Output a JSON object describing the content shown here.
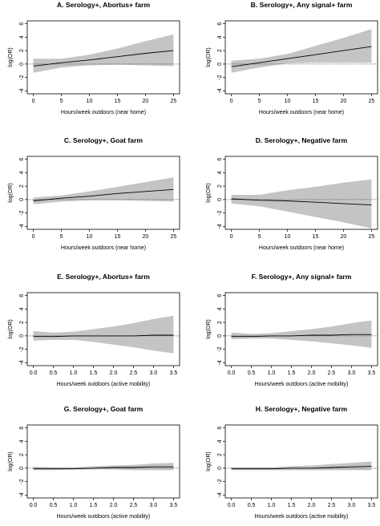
{
  "chart_data": [
    {
      "type": "line",
      "title": "A. Serology+, Abortus+ farm",
      "xlabel": "Hours/week outdoors (near home)",
      "ylabel": "log(OR)",
      "xlim": [
        0,
        25
      ],
      "ylim": [
        -4,
        6
      ],
      "xticks": [
        "0",
        "5",
        "10",
        "15",
        "20",
        "25"
      ],
      "yticks": [
        "-4",
        "-2",
        "0",
        "2",
        "4",
        "6"
      ],
      "reference_line": 0,
      "x": [
        0,
        5,
        10,
        15,
        20,
        25
      ],
      "series": [
        {
          "values": [
            -0.3,
            0.2,
            0.6,
            1.1,
            1.6,
            2.0
          ],
          "ci_lower": [
            -1.3,
            -0.5,
            -0.2,
            -0.1,
            -0.2,
            -0.3
          ],
          "ci_upper": [
            0.8,
            0.8,
            1.4,
            2.3,
            3.4,
            4.4
          ]
        }
      ]
    },
    {
      "type": "line",
      "title": "B. Serology+, Any signal+ farm",
      "xlabel": "Hours/week outdoors (near home)",
      "ylabel": "log(OR)",
      "xlim": [
        0,
        25
      ],
      "ylim": [
        -4,
        6
      ],
      "xticks": [
        "0",
        "5",
        "10",
        "15",
        "20",
        "25"
      ],
      "yticks": [
        "-4",
        "-2",
        "0",
        "2",
        "4",
        "6"
      ],
      "reference_line": 0,
      "x": [
        0,
        5,
        10,
        15,
        20,
        25
      ],
      "series": [
        {
          "values": [
            -0.4,
            0.2,
            0.8,
            1.4,
            2.0,
            2.6
          ],
          "ci_lower": [
            -1.3,
            -0.5,
            0.1,
            0.2,
            0.2,
            0.2
          ],
          "ci_upper": [
            0.5,
            0.8,
            1.5,
            2.7,
            3.9,
            5.2
          ]
        }
      ]
    },
    {
      "type": "line",
      "title": "C. Serology+, Goat farm",
      "xlabel": "Hours/week outdoors (near home)",
      "ylabel": "log(OR)",
      "xlim": [
        0,
        25
      ],
      "ylim": [
        -4,
        6
      ],
      "xticks": [
        "0",
        "5",
        "10",
        "15",
        "20",
        "25"
      ],
      "yticks": [
        "-4",
        "-2",
        "0",
        "2",
        "4",
        "6"
      ],
      "reference_line": 0,
      "x": [
        0,
        5,
        10,
        15,
        20,
        25
      ],
      "series": [
        {
          "values": [
            -0.2,
            0.2,
            0.5,
            0.9,
            1.2,
            1.5
          ],
          "ci_lower": [
            -0.7,
            -0.3,
            -0.1,
            -0.1,
            -0.2,
            -0.3
          ],
          "ci_upper": [
            0.3,
            0.6,
            1.2,
            1.9,
            2.6,
            3.3
          ]
        }
      ]
    },
    {
      "type": "line",
      "title": "D. Serology+, Negative farm",
      "xlabel": "Hours/week outdoors (near home)",
      "ylabel": "log(OR)",
      "xlim": [
        0,
        25
      ],
      "ylim": [
        -4,
        6
      ],
      "xticks": [
        "0",
        "5",
        "10",
        "15",
        "20",
        "25"
      ],
      "yticks": [
        "-4",
        "-2",
        "0",
        "2",
        "4",
        "6"
      ],
      "reference_line": 0,
      "x": [
        0,
        5,
        10,
        15,
        20,
        25
      ],
      "series": [
        {
          "values": [
            0.1,
            -0.1,
            -0.2,
            -0.4,
            -0.6,
            -0.8
          ],
          "ci_lower": [
            -0.6,
            -1.0,
            -1.8,
            -2.6,
            -3.4,
            -4.3
          ],
          "ci_upper": [
            0.7,
            0.7,
            1.4,
            1.9,
            2.5,
            3.0
          ]
        }
      ]
    },
    {
      "type": "line",
      "title": "E. Serology+, Abortus+ farm",
      "xlabel": "Hours/week outdoors (active mobility)",
      "ylabel": "log(OR)",
      "xlim": [
        0,
        3.5
      ],
      "ylim": [
        -4,
        6
      ],
      "xticks": [
        "0.0",
        "0.5",
        "1.0",
        "1.5",
        "2.0",
        "2.5",
        "3.0",
        "3.5"
      ],
      "yticks": [
        "-4",
        "-2",
        "0",
        "2",
        "4",
        "6"
      ],
      "reference_line": 0,
      "x": [
        0,
        0.5,
        1.0,
        1.5,
        2.0,
        2.5,
        3.0,
        3.5
      ],
      "series": [
        {
          "values": [
            -0.1,
            -0.1,
            0.0,
            0.0,
            0.0,
            0.0,
            0.1,
            0.1
          ],
          "ci_lower": [
            -0.7,
            -0.6,
            -0.6,
            -0.9,
            -1.3,
            -1.7,
            -2.2,
            -2.6
          ],
          "ci_upper": [
            0.7,
            0.5,
            0.6,
            1.0,
            1.4,
            1.9,
            2.5,
            3.0
          ]
        }
      ]
    },
    {
      "type": "line",
      "title": "F. Serology+, Any signal+ farm",
      "xlabel": "Hours/week outdoors (active mobility)",
      "ylabel": "log(OR)",
      "xlim": [
        0,
        3.5
      ],
      "ylim": [
        -4,
        6
      ],
      "xticks": [
        "0.0",
        "0.5",
        "1.0",
        "1.5",
        "2.0",
        "2.5",
        "3.0",
        "3.5"
      ],
      "yticks": [
        "-4",
        "-2",
        "0",
        "2",
        "4",
        "6"
      ],
      "reference_line": 0,
      "x": [
        0,
        0.5,
        1.0,
        1.5,
        2.0,
        2.5,
        3.0,
        3.5
      ],
      "series": [
        {
          "values": [
            -0.1,
            -0.1,
            0.0,
            0.0,
            0.1,
            0.1,
            0.2,
            0.2
          ],
          "ci_lower": [
            -0.5,
            -0.4,
            -0.4,
            -0.6,
            -0.8,
            -1.1,
            -1.4,
            -1.8
          ],
          "ci_upper": [
            0.5,
            0.3,
            0.4,
            0.7,
            1.0,
            1.4,
            1.9,
            2.3
          ]
        }
      ]
    },
    {
      "type": "line",
      "title": "G. Serology+, Goat farm",
      "xlabel": "Hours/week outdoors (active mobility)",
      "ylabel": "log(OR)",
      "xlim": [
        0,
        3.5
      ],
      "ylim": [
        -4,
        6
      ],
      "xticks": [
        "0.0",
        "0.5",
        "1.0",
        "1.5",
        "2.0",
        "2.5",
        "3.0",
        "3.5"
      ],
      "yticks": [
        "-4",
        "-2",
        "0",
        "2",
        "4",
        "6"
      ],
      "reference_line": 0,
      "x": [
        0,
        0.5,
        1.0,
        1.5,
        2.0,
        2.5,
        3.0,
        3.5
      ],
      "series": [
        {
          "values": [
            -0.1,
            -0.1,
            -0.1,
            0.0,
            0.1,
            0.1,
            0.2,
            0.2
          ],
          "ci_lower": [
            -0.3,
            -0.3,
            -0.2,
            -0.2,
            -0.2,
            -0.3,
            -0.3,
            -0.3
          ],
          "ci_upper": [
            0.2,
            0.1,
            0.1,
            0.3,
            0.4,
            0.5,
            0.7,
            0.8
          ]
        }
      ]
    },
    {
      "type": "line",
      "title": "H. Serology+, Negative farm",
      "xlabel": "Hours/week outdoors (active mobility)",
      "ylabel": "log(OR)",
      "xlim": [
        0,
        3.5
      ],
      "ylim": [
        -4,
        6
      ],
      "xticks": [
        "0.0",
        "0.5",
        "1.0",
        "1.5",
        "2.0",
        "2.5",
        "3.0",
        "3.5"
      ],
      "yticks": [
        "-4",
        "-2",
        "0",
        "2",
        "4",
        "6"
      ],
      "reference_line": 0,
      "x": [
        0,
        0.5,
        1.0,
        1.5,
        2.0,
        2.5,
        3.0,
        3.5
      ],
      "series": [
        {
          "values": [
            -0.1,
            -0.1,
            -0.1,
            0.0,
            0.0,
            0.1,
            0.2,
            0.3
          ],
          "ci_lower": [
            -0.3,
            -0.3,
            -0.3,
            -0.3,
            -0.3,
            -0.3,
            -0.3,
            -0.3
          ],
          "ci_upper": [
            0.1,
            0.1,
            0.1,
            0.3,
            0.4,
            0.6,
            0.8,
            1.0
          ]
        }
      ]
    }
  ],
  "colors": {
    "ci_band": "#c4c4c4",
    "line": "#000000",
    "reference": "#555555",
    "axis": "#000000"
  }
}
